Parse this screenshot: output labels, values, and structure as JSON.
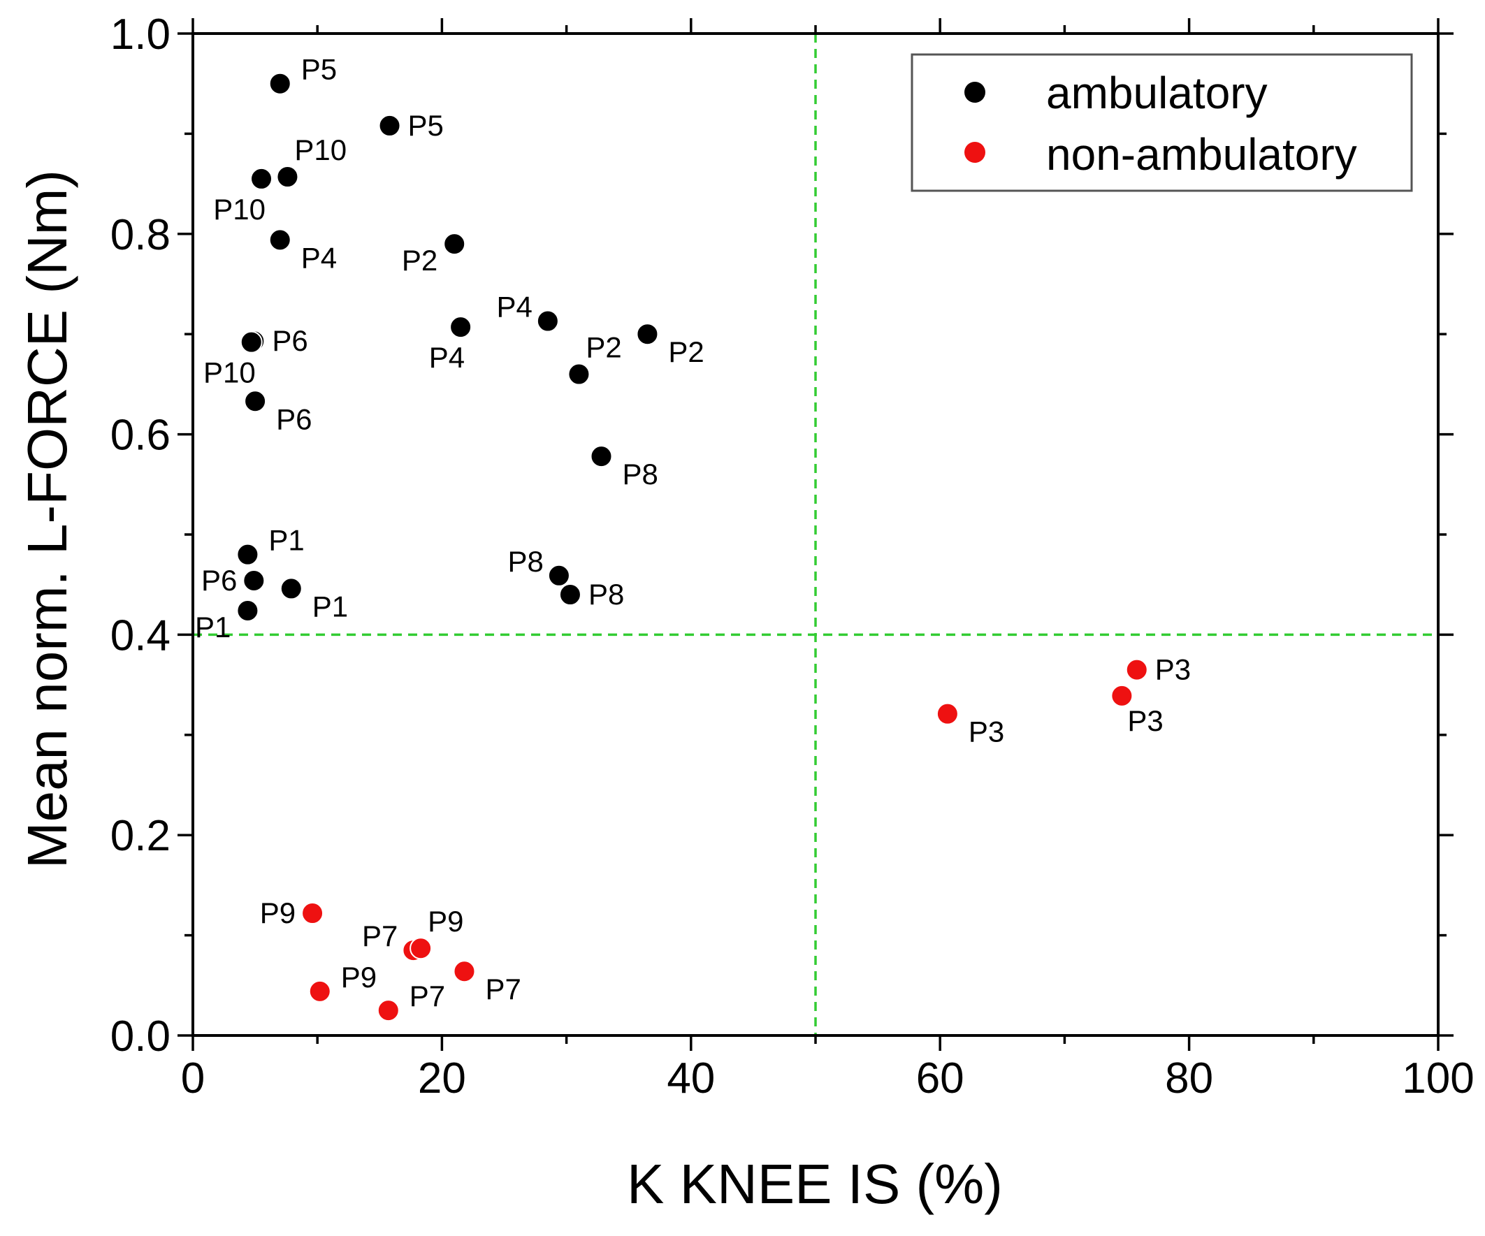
{
  "chart_data": {
    "type": "scatter",
    "xlabel": "K KNEE IS (%)",
    "ylabel": "Mean norm. L-FORCE (Nm)",
    "xlim": [
      0,
      100
    ],
    "ylim": [
      0,
      1.0
    ],
    "x_ticks": [
      0,
      20,
      40,
      60,
      80,
      100
    ],
    "x_tick_labels": [
      "0",
      "20",
      "40",
      "60",
      "80",
      "100"
    ],
    "x_minor_ticks": [
      10,
      30,
      50,
      70,
      90
    ],
    "y_ticks": [
      0,
      0.2,
      0.4,
      0.6,
      0.8,
      1.0
    ],
    "y_tick_labels": [
      "0.0",
      "0.2",
      "0.4",
      "0.6",
      "0.8",
      "1.0"
    ],
    "y_minor_ticks": [
      0.1,
      0.3,
      0.5,
      0.7,
      0.9
    ],
    "grid": false,
    "legend_position": "top-right",
    "reference_lines": [
      {
        "orientation": "vertical",
        "value": 50,
        "color": "#33cc33",
        "style": "dashed"
      },
      {
        "orientation": "horizontal",
        "value": 0.4,
        "color": "#33cc33",
        "style": "dashed"
      }
    ],
    "series": [
      {
        "name": "ambulatory",
        "color": "#000000",
        "points": [
          {
            "x": 7.0,
            "y": 0.95,
            "label": "P5",
            "label_side": "right-up"
          },
          {
            "x": 15.8,
            "y": 0.908,
            "label": "P5",
            "label_side": "right"
          },
          {
            "x": 5.5,
            "y": 0.855,
            "label": "P10",
            "label_side": "below-left"
          },
          {
            "x": 7.6,
            "y": 0.857,
            "label": "P10",
            "label_side": "above-right"
          },
          {
            "x": 7.0,
            "y": 0.794,
            "label": "P4",
            "label_side": "right-down"
          },
          {
            "x": 21.0,
            "y": 0.79,
            "label": "P2",
            "label_side": "left-down"
          },
          {
            "x": 21.5,
            "y": 0.707,
            "label": "P4",
            "label_side": "below-left"
          },
          {
            "x": 28.5,
            "y": 0.713,
            "label": "P4",
            "label_side": "left-up"
          },
          {
            "x": 31.0,
            "y": 0.66,
            "label": "P2",
            "label_side": "above-right"
          },
          {
            "x": 36.5,
            "y": 0.7,
            "label": "P2",
            "label_side": "right-down"
          },
          {
            "x": 4.9,
            "y": 0.693,
            "label": "P6",
            "label_side": "right"
          },
          {
            "x": 4.7,
            "y": 0.692,
            "label": "P10",
            "label_side": "below-left"
          },
          {
            "x": 5.0,
            "y": 0.633,
            "label": "P6",
            "label_side": "right-down"
          },
          {
            "x": 32.8,
            "y": 0.578,
            "label": "P8",
            "label_side": "right-down"
          },
          {
            "x": 4.4,
            "y": 0.48,
            "label": "P1",
            "label_side": "right-up"
          },
          {
            "x": 4.9,
            "y": 0.454,
            "label": "P6",
            "label_side": "left"
          },
          {
            "x": 7.9,
            "y": 0.446,
            "label": "P1",
            "label_side": "right-down"
          },
          {
            "x": 4.4,
            "y": 0.424,
            "label": "P1",
            "label_side": "left-down"
          },
          {
            "x": 29.4,
            "y": 0.459,
            "label": "P8",
            "label_side": "left-up"
          },
          {
            "x": 30.3,
            "y": 0.44,
            "label": "P8",
            "label_side": "right"
          }
        ]
      },
      {
        "name": "non-ambulatory",
        "color": "#ee1111",
        "points": [
          {
            "x": 60.6,
            "y": 0.321,
            "label": "P3",
            "label_side": "right-down"
          },
          {
            "x": 75.8,
            "y": 0.365,
            "label": "P3",
            "label_side": "right"
          },
          {
            "x": 74.6,
            "y": 0.339,
            "label": "P3",
            "label_side": "below-right"
          },
          {
            "x": 9.6,
            "y": 0.122,
            "label": "P9",
            "label_side": "left"
          },
          {
            "x": 17.7,
            "y": 0.085,
            "label": "P7",
            "label_side": "left-up"
          },
          {
            "x": 18.3,
            "y": 0.087,
            "label": "P9",
            "label_side": "above-right"
          },
          {
            "x": 21.8,
            "y": 0.064,
            "label": "P7",
            "label_side": "right-down"
          },
          {
            "x": 10.2,
            "y": 0.044,
            "label": "P9",
            "label_side": "right-up"
          },
          {
            "x": 15.7,
            "y": 0.025,
            "label": "P7",
            "label_side": "right-up"
          }
        ]
      }
    ]
  }
}
